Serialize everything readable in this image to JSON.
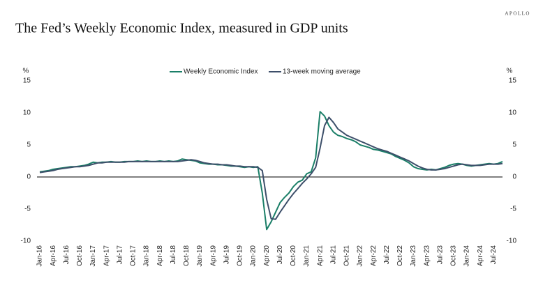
{
  "brand": "APOLLO",
  "chart_data": {
    "type": "line",
    "title": "The Fed’s Weekly Economic Index, measured in GDP units",
    "y_label": "%",
    "y2_label": "%",
    "categories": [
      "Jan-16",
      null,
      null,
      "Apr-16",
      null,
      null,
      "Jul-16",
      null,
      null,
      "Oct-16",
      null,
      null,
      "Jan-17",
      null,
      null,
      "Apr-17",
      null,
      null,
      "Jul-17",
      null,
      null,
      "Oct-17",
      null,
      null,
      "Jan-18",
      null,
      null,
      "Apr-18",
      null,
      null,
      "Jul-18",
      null,
      null,
      "Oct-18",
      null,
      null,
      "Jan-19",
      null,
      null,
      "Apr-19",
      null,
      null,
      "Jul-19",
      null,
      null,
      "Oct-19",
      null,
      null,
      "Jan-20",
      null,
      null,
      "Apr-20",
      null,
      null,
      "Jul-20",
      null,
      null,
      "Oct-20",
      null,
      null,
      "Jan-21",
      null,
      null,
      "Apr-21",
      null,
      null,
      "Jul-21",
      null,
      null,
      "Oct-21",
      null,
      null,
      "Jan-22",
      null,
      null,
      "Apr-22",
      null,
      null,
      "Jul-22",
      null,
      null,
      "Oct-22",
      null,
      null,
      "Jan-23",
      null,
      null,
      "Apr-23",
      null,
      null,
      "Jul-23",
      null,
      null,
      "Oct-23",
      null,
      null,
      "Jan-24",
      null,
      null,
      "Apr-24",
      null,
      null,
      "Jul-24",
      null,
      null
    ],
    "series": [
      {
        "name": "Weekly Economic Index",
        "color": "#1b7f68",
        "values": [
          0.8,
          0.9,
          1.0,
          1.2,
          1.3,
          1.4,
          1.5,
          1.6,
          1.6,
          1.7,
          1.8,
          2.0,
          2.3,
          2.2,
          2.3,
          2.3,
          2.4,
          2.3,
          2.3,
          2.4,
          2.4,
          2.4,
          2.5,
          2.4,
          2.5,
          2.4,
          2.4,
          2.5,
          2.4,
          2.5,
          2.4,
          2.5,
          2.8,
          2.7,
          2.6,
          2.5,
          2.2,
          2.1,
          2.0,
          2.0,
          1.9,
          1.9,
          1.8,
          1.7,
          1.7,
          1.6,
          1.5,
          1.6,
          1.5,
          1.6,
          -2.5,
          -8.2,
          -7.0,
          -5.5,
          -4.0,
          -3.2,
          -2.5,
          -1.5,
          -0.8,
          -0.5,
          0.5,
          0.8,
          3.0,
          10.2,
          9.5,
          8.0,
          7.0,
          6.5,
          6.3,
          6.0,
          5.8,
          5.5,
          5.0,
          4.8,
          4.6,
          4.3,
          4.2,
          4.0,
          3.8,
          3.6,
          3.2,
          2.9,
          2.6,
          2.2,
          1.6,
          1.3,
          1.2,
          1.1,
          1.2,
          1.1,
          1.3,
          1.5,
          1.8,
          2.0,
          2.1,
          2.0,
          1.8,
          1.7,
          1.8,
          1.9,
          2.0,
          2.1,
          2.0,
          2.1,
          2.4
        ]
      },
      {
        "name": "13-week moving average",
        "color": "#3d4f6a",
        "values": [
          0.7,
          0.8,
          0.9,
          1.0,
          1.2,
          1.3,
          1.4,
          1.5,
          1.6,
          1.6,
          1.7,
          1.8,
          2.0,
          2.2,
          2.2,
          2.3,
          2.3,
          2.3,
          2.3,
          2.3,
          2.4,
          2.4,
          2.4,
          2.4,
          2.4,
          2.4,
          2.4,
          2.4,
          2.4,
          2.4,
          2.4,
          2.4,
          2.5,
          2.6,
          2.7,
          2.6,
          2.4,
          2.2,
          2.1,
          2.0,
          2.0,
          1.9,
          1.9,
          1.8,
          1.7,
          1.7,
          1.6,
          1.6,
          1.6,
          1.5,
          1.0,
          -3.5,
          -6.5,
          -6.6,
          -5.5,
          -4.5,
          -3.5,
          -2.6,
          -1.8,
          -1.0,
          -0.3,
          0.5,
          1.5,
          4.5,
          8.0,
          9.3,
          8.5,
          7.5,
          7.0,
          6.5,
          6.2,
          5.9,
          5.6,
          5.3,
          5.0,
          4.7,
          4.4,
          4.2,
          4.0,
          3.7,
          3.4,
          3.1,
          2.8,
          2.5,
          2.1,
          1.7,
          1.4,
          1.2,
          1.1,
          1.1,
          1.2,
          1.3,
          1.5,
          1.7,
          1.9,
          2.0,
          1.9,
          1.8,
          1.8,
          1.8,
          1.9,
          2.0,
          2.0,
          2.0,
          2.1
        ]
      }
    ],
    "ylim": [
      -10,
      15
    ],
    "yticks": [
      -10,
      -5,
      0,
      5,
      10,
      15
    ],
    "y2lim": [
      -10,
      15
    ],
    "y2ticks": [
      -10,
      -5,
      0,
      5,
      10,
      15
    ],
    "grid": false
  }
}
